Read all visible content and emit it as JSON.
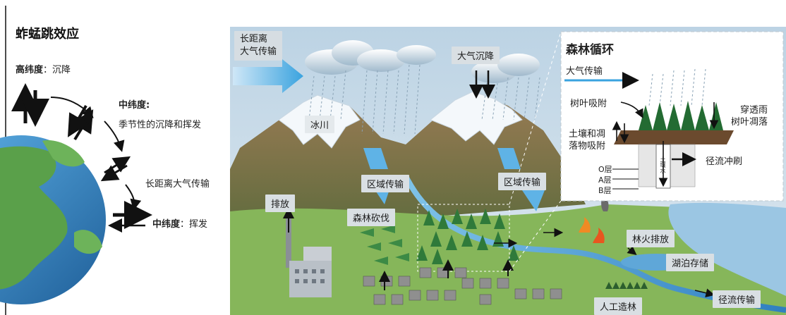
{
  "left": {
    "title": "蚱蜢跳效应",
    "high_lat_key": "高纬度",
    "high_lat_val": "沉降",
    "mid_lat1_key": "中纬度:",
    "mid_lat1_val": "季节性的沉降和挥发",
    "long_range": "长距离大气传输",
    "mid_lat2_key": "中纬度",
    "mid_lat2_val": "挥发"
  },
  "scene": {
    "long_range_line1": "长距离",
    "long_range_line2": "大气传输",
    "atmos_deposition": "大气沉降",
    "glacier": "冰川",
    "regional1": "区域传输",
    "regional2": "区域传输",
    "emission": "排放",
    "deforestation": "森林砍伐",
    "forest_fire": "林火排放",
    "lake_storage": "湖泊存储",
    "runoff_transport": "径流传输",
    "plantation": "人工造林"
  },
  "inset": {
    "title": "森林循环",
    "atmos_transport": "大气传输",
    "leaf_adsorption": "树叶吸附",
    "throughfall_line1": "穿透雨",
    "throughfall_line2": "树叶凋落",
    "soil_line1": "土壤和凋",
    "soil_line2": "落物吸附",
    "runoff_scour": "径流冲刷",
    "layer_o": "O层",
    "layer_a": "A层",
    "layer_b": "B层",
    "soil_column": "土壤水"
  }
}
